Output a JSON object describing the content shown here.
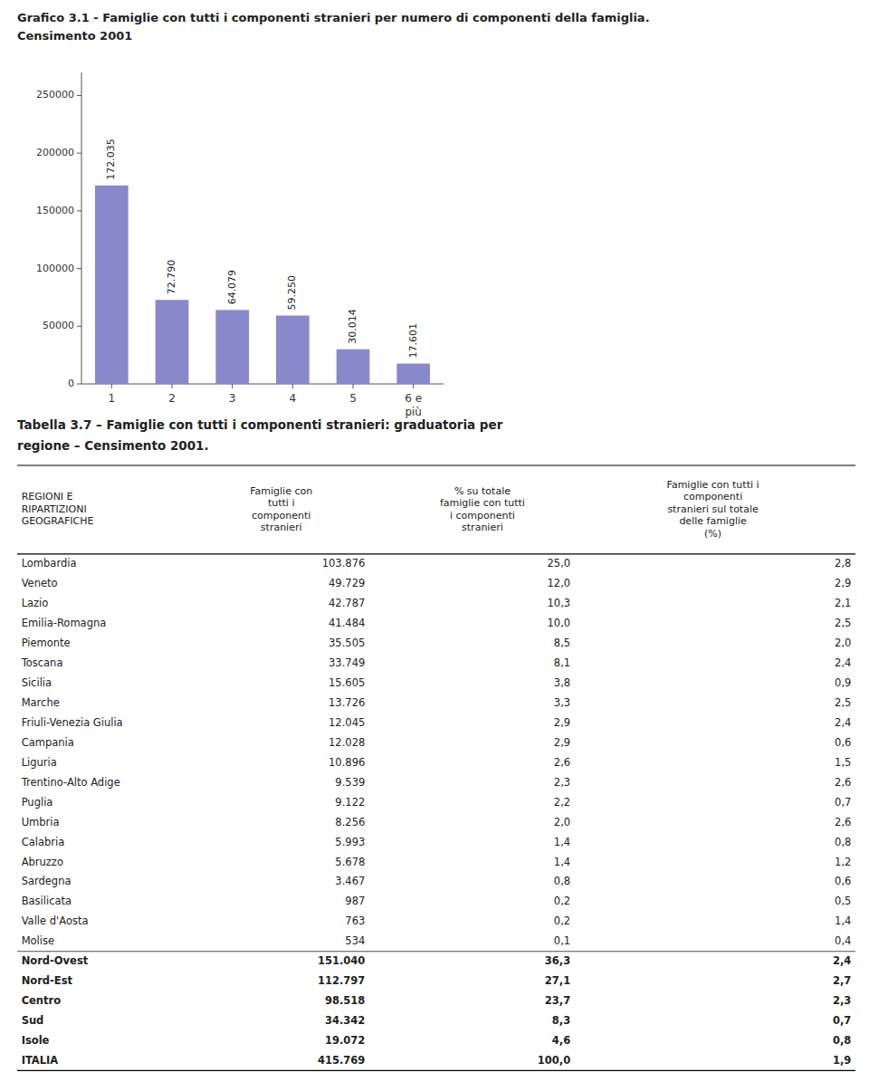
{
  "chart_data": [
    {
      "type": "bar",
      "title": "Grafico 3.1  -  Famiglie con tutti i componenti stranieri per numero di componenti della famiglia.",
      "subtitle": "Censimento 2001",
      "categories": [
        "1",
        "2",
        "3",
        "4",
        "5",
        "6 e\npiù"
      ],
      "values": [
        172035,
        72790,
        64079,
        59250,
        30014,
        17601
      ],
      "value_labels": [
        "172.035",
        "72.790",
        "64.079",
        "59.250",
        "30.014",
        "17.601"
      ],
      "data_labels": true,
      "color": "#8888cc",
      "ylim": [
        0,
        270000
      ],
      "yticks": [
        0,
        50000,
        100000,
        150000,
        200000,
        250000
      ],
      "grid": false
    },
    {
      "type": "table",
      "title": "Tabella 3.7 – Famiglie con tutti i componenti stranieri: graduatoria per",
      "subtitle": "regione – Censimento 2001.",
      "columns": [
        "REGIONI E\nRIPARTIZIONI\nGEOGRAFICHE",
        "Famiglie con\ntutti i\ncomponenti\nstranieri",
        "% su totale\nfamiglie con tutti\ni componenti\nstranieri",
        "Famiglie con tutti i\ncomponenti\nstranieri sul totale\ndelle famiglie\n(%)"
      ],
      "rows": [
        [
          "Lombardia",
          "103.876",
          "25,0",
          "2,8"
        ],
        [
          "Veneto",
          "49.729",
          "12,0",
          "2,9"
        ],
        [
          "Lazio",
          "42.787",
          "10,3",
          "2,1"
        ],
        [
          "Emilia-Romagna",
          "41.484",
          "10,0",
          "2,5"
        ],
        [
          "Piemonte",
          "35.505",
          "8,5",
          "2,0"
        ],
        [
          "Toscana",
          "33.749",
          "8,1",
          "2,4"
        ],
        [
          "Sicilia",
          "15.605",
          "3,8",
          "0,9"
        ],
        [
          "Marche",
          "13.726",
          "3,3",
          "2,5"
        ],
        [
          "Friuli-Venezia Giulia",
          "12.045",
          "2,9",
          "2,4"
        ],
        [
          "Campania",
          "12.028",
          "2,9",
          "0,6"
        ],
        [
          "Liguria",
          "10.896",
          "2,6",
          "1,5"
        ],
        [
          "Trentino-Alto Adige",
          "9.539",
          "2,3",
          "2,6"
        ],
        [
          "Puglia",
          "9.122",
          "2,2",
          "0,7"
        ],
        [
          "Umbria",
          "8.256",
          "2,0",
          "2,6"
        ],
        [
          "Calabria",
          "5.993",
          "1,4",
          "0,8"
        ],
        [
          "Abruzzo",
          "5.678",
          "1,4",
          "1,2"
        ],
        [
          "Sardegna",
          "3.467",
          "0,8",
          "0,6"
        ],
        [
          "Basilicata",
          "987",
          "0,2",
          "0,5"
        ],
        [
          "Valle d'Aosta",
          "763",
          "0,2",
          "1,4"
        ],
        [
          "Molise",
          "534",
          "0,1",
          "0,4"
        ]
      ],
      "summary_rows": [
        [
          "Nord-Ovest",
          "151.040",
          "36,3",
          "2,4"
        ],
        [
          "Nord-Est",
          "112.797",
          "27,1",
          "2,7"
        ],
        [
          "Centro",
          "98.518",
          "23,7",
          "2,3"
        ],
        [
          "Sud",
          "34.342",
          "8,3",
          "0,7"
        ],
        [
          "Isole",
          "19.072",
          "4,6",
          "0,8"
        ],
        [
          "ITALIA",
          "415.769",
          "100,0",
          "1,9"
        ]
      ]
    }
  ]
}
